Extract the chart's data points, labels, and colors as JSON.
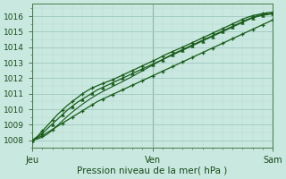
{
  "xlabel": "Pression niveau de la mer( hPa )",
  "bg_color": "#c8e8e0",
  "plot_bg_color": "#c8e8e0",
  "grid_major_color": "#a0c8c0",
  "grid_minor_color": "#b8d8d0",
  "line_color": "#1a5c1a",
  "ylim": [
    1007.5,
    1016.8
  ],
  "xlim": [
    0,
    48
  ],
  "yticks": [
    1008,
    1009,
    1010,
    1011,
    1012,
    1013,
    1014,
    1015,
    1016
  ],
  "xtick_positions": [
    0,
    24,
    48
  ],
  "xtick_labels": [
    "Jeu",
    "Ven",
    "Sam"
  ],
  "x": [
    0,
    1,
    2,
    3,
    4,
    5,
    6,
    7,
    8,
    9,
    10,
    11,
    12,
    13,
    14,
    15,
    16,
    17,
    18,
    19,
    20,
    21,
    22,
    23,
    24,
    25,
    26,
    27,
    28,
    29,
    30,
    31,
    32,
    33,
    34,
    35,
    36,
    37,
    38,
    39,
    40,
    41,
    42,
    43,
    44,
    45,
    46,
    47,
    48
  ],
  "line1_y": [
    1008.0,
    1008.15,
    1008.3,
    1008.5,
    1008.7,
    1008.9,
    1009.1,
    1009.3,
    1009.5,
    1009.7,
    1009.9,
    1010.1,
    1010.3,
    1010.5,
    1010.65,
    1010.8,
    1010.95,
    1011.1,
    1011.25,
    1011.4,
    1011.55,
    1011.7,
    1011.85,
    1012.0,
    1012.15,
    1012.3,
    1012.45,
    1012.6,
    1012.75,
    1012.9,
    1013.05,
    1013.2,
    1013.35,
    1013.5,
    1013.65,
    1013.8,
    1013.95,
    1014.1,
    1014.25,
    1014.4,
    1014.55,
    1014.7,
    1014.85,
    1015.0,
    1015.15,
    1015.3,
    1015.45,
    1015.6,
    1015.75
  ],
  "line2_y": [
    1008.0,
    1008.2,
    1008.45,
    1008.75,
    1009.05,
    1009.35,
    1009.65,
    1009.95,
    1010.2,
    1010.45,
    1010.65,
    1010.85,
    1011.05,
    1011.25,
    1011.4,
    1011.55,
    1011.7,
    1011.85,
    1012.0,
    1012.15,
    1012.3,
    1012.45,
    1012.6,
    1012.75,
    1012.9,
    1013.05,
    1013.2,
    1013.35,
    1013.5,
    1013.65,
    1013.8,
    1013.95,
    1014.1,
    1014.25,
    1014.4,
    1014.55,
    1014.7,
    1014.85,
    1015.0,
    1015.15,
    1015.3,
    1015.45,
    1015.6,
    1015.75,
    1015.88,
    1015.98,
    1016.05,
    1016.1,
    1016.15
  ],
  "line3_y": [
    1008.0,
    1008.25,
    1008.6,
    1008.95,
    1009.3,
    1009.65,
    1009.95,
    1010.25,
    1010.5,
    1010.75,
    1011.0,
    1011.2,
    1011.38,
    1011.52,
    1011.65,
    1011.78,
    1011.9,
    1012.05,
    1012.2,
    1012.35,
    1012.5,
    1012.65,
    1012.8,
    1012.95,
    1013.1,
    1013.25,
    1013.42,
    1013.58,
    1013.72,
    1013.86,
    1014.0,
    1014.15,
    1014.3,
    1014.45,
    1014.6,
    1014.75,
    1014.9,
    1015.05,
    1015.2,
    1015.35,
    1015.5,
    1015.65,
    1015.8,
    1015.93,
    1016.03,
    1016.1,
    1016.17,
    1016.22,
    1016.25
  ],
  "line4_y": [
    1008.0,
    1008.08,
    1008.2,
    1008.4,
    1008.65,
    1008.95,
    1009.25,
    1009.55,
    1009.82,
    1010.08,
    1010.32,
    1010.55,
    1010.76,
    1010.96,
    1011.13,
    1011.3,
    1011.46,
    1011.62,
    1011.78,
    1011.95,
    1012.12,
    1012.3,
    1012.48,
    1012.66,
    1012.84,
    1013.02,
    1013.2,
    1013.38,
    1013.55,
    1013.7,
    1013.85,
    1014.0,
    1014.15,
    1014.3,
    1014.45,
    1014.6,
    1014.75,
    1014.9,
    1015.05,
    1015.2,
    1015.35,
    1015.5,
    1015.65,
    1015.8,
    1015.93,
    1016.03,
    1016.1,
    1016.16,
    1016.2
  ]
}
